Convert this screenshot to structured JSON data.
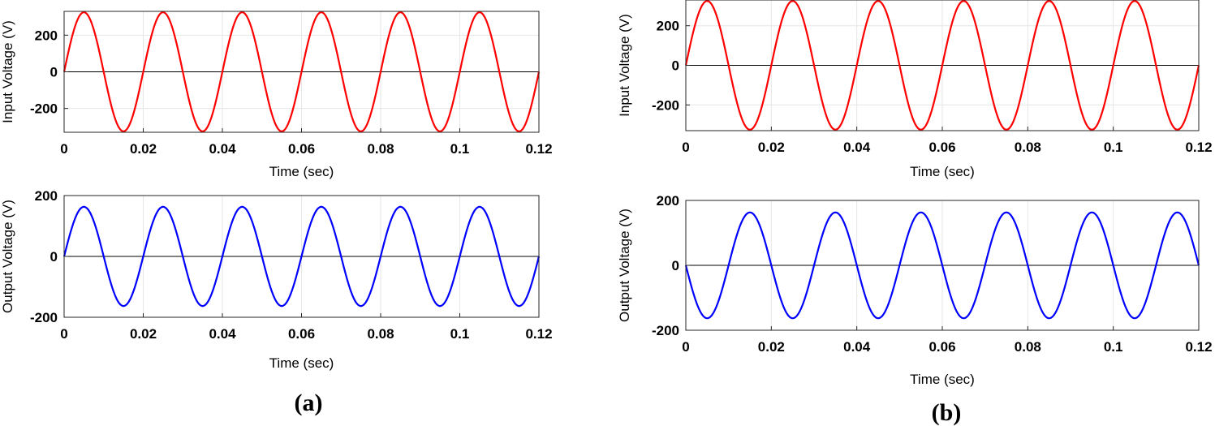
{
  "figures": [
    {
      "caption": "(a)"
    },
    {
      "caption": "(b)"
    }
  ],
  "chart_data": [
    {
      "type": "line",
      "panel": "a",
      "xlabel": "Time (sec)",
      "ylabel": "Input Voltage (V)",
      "xlim": [
        0,
        0.12
      ],
      "ylim": [
        -330,
        330
      ],
      "xticks": [
        0,
        0.02,
        0.04,
        0.06,
        0.08,
        0.1,
        0.12
      ],
      "xtick_labels": [
        "0",
        "0.02",
        "0.04",
        "0.06",
        "0.08",
        "0.1",
        "0.12"
      ],
      "yticks": [
        -200,
        0,
        200
      ],
      "ytick_labels": [
        "-200",
        "0",
        "200"
      ],
      "grid": true,
      "series": [
        {
          "amplitude": 325,
          "frequency_hz": 50,
          "phase_deg": 0,
          "color": "#ff0000"
        }
      ]
    },
    {
      "type": "line",
      "panel": "a",
      "xlabel": "Time (sec)",
      "ylabel": "Output Voltage (V)",
      "xlim": [
        0,
        0.12
      ],
      "ylim": [
        -200,
        200
      ],
      "xticks": [
        0,
        0.02,
        0.04,
        0.06,
        0.08,
        0.1,
        0.12
      ],
      "xtick_labels": [
        "0",
        "0.02",
        "0.04",
        "0.06",
        "0.08",
        "0.1",
        "0.12"
      ],
      "yticks": [
        -200,
        0,
        200
      ],
      "ytick_labels": [
        "-200",
        "0",
        "200"
      ],
      "grid": true,
      "series": [
        {
          "amplitude": 163,
          "frequency_hz": 50,
          "phase_deg": 0,
          "color": "#0000ff"
        }
      ]
    },
    {
      "type": "line",
      "panel": "b",
      "xlabel": "Time (sec)",
      "ylabel": "Input Voltage (V)",
      "xlim": [
        0,
        0.12
      ],
      "ylim": [
        -330,
        330
      ],
      "xticks": [
        0,
        0.02,
        0.04,
        0.06,
        0.08,
        0.1,
        0.12
      ],
      "xtick_labels": [
        "0",
        "0.02",
        "0.04",
        "0.06",
        "0.08",
        "0.1",
        "0.12"
      ],
      "yticks": [
        -200,
        0,
        200
      ],
      "ytick_labels": [
        "-200",
        "0",
        "200"
      ],
      "grid": true,
      "series": [
        {
          "amplitude": 325,
          "frequency_hz": 50,
          "phase_deg": 0,
          "color": "#ff0000"
        }
      ]
    },
    {
      "type": "line",
      "panel": "b",
      "xlabel": "Time (sec)",
      "ylabel": "Output Voltage (V)",
      "xlim": [
        0,
        0.12
      ],
      "ylim": [
        -200,
        200
      ],
      "xticks": [
        0,
        0.02,
        0.04,
        0.06,
        0.08,
        0.1,
        0.12
      ],
      "xtick_labels": [
        "0",
        "0.02",
        "0.04",
        "0.06",
        "0.08",
        "0.1",
        "0.12"
      ],
      "yticks": [
        -200,
        0,
        200
      ],
      "ytick_labels": [
        "-200",
        "0",
        "200"
      ],
      "grid": true,
      "series": [
        {
          "amplitude": 163,
          "frequency_hz": 50,
          "phase_deg": 180,
          "color": "#0000ff"
        }
      ]
    }
  ]
}
